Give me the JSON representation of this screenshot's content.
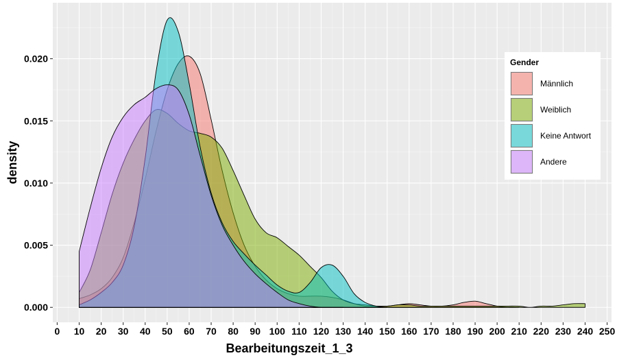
{
  "chart_data": {
    "type": "area",
    "subtype": "density",
    "xlabel": "Bearbeitungszeit_1_3",
    "ylabel": "density",
    "xlim": [
      -2,
      252
    ],
    "ylim": [
      -0.0012,
      0.0245
    ],
    "xticks": [
      0,
      10,
      20,
      30,
      40,
      50,
      60,
      70,
      80,
      90,
      100,
      110,
      120,
      130,
      140,
      150,
      160,
      170,
      180,
      190,
      200,
      210,
      220,
      230,
      240,
      250
    ],
    "yticks": [
      0.0,
      0.005,
      0.01,
      0.015,
      0.02
    ],
    "ytick_labels": [
      "0.000",
      "0.005",
      "0.010",
      "0.015",
      "0.020"
    ],
    "grid": true,
    "legend": {
      "title": "Gender",
      "position": "right",
      "entries": [
        "Männlich",
        "Weiblich",
        "Keine Antwort",
        "Andere"
      ]
    },
    "series": [
      {
        "name": "Männlich",
        "color": "#F8766D",
        "x": [
          10,
          15,
          20,
          25,
          30,
          35,
          40,
          45,
          50,
          55,
          60,
          65,
          70,
          75,
          80,
          85,
          90,
          95,
          100,
          105,
          110,
          115,
          120,
          125,
          130,
          135,
          140,
          145,
          150,
          155,
          160,
          165,
          170,
          175,
          180,
          185,
          190,
          195,
          200,
          205,
          210
        ],
        "y": [
          0.0007,
          0.001,
          0.0015,
          0.0024,
          0.004,
          0.0068,
          0.0103,
          0.0142,
          0.0175,
          0.0196,
          0.0202,
          0.0188,
          0.0151,
          0.011,
          0.0076,
          0.005,
          0.0033,
          0.0022,
          0.0015,
          0.0011,
          0.0009,
          0.0009,
          0.0009,
          0.0008,
          0.0006,
          0.0003,
          0.0001,
          0.0001,
          0.0001,
          0.0002,
          0.0003,
          0.0002,
          0.0001,
          0.0001,
          0.0002,
          0.0004,
          0.0005,
          0.0003,
          0.0001,
          0.0,
          0.0
        ]
      },
      {
        "name": "Weiblich",
        "color": "#7CAE00",
        "x": [
          10,
          15,
          20,
          25,
          30,
          35,
          40,
          45,
          50,
          55,
          60,
          65,
          70,
          75,
          80,
          85,
          90,
          95,
          100,
          105,
          110,
          115,
          120,
          125,
          130,
          135,
          140,
          145,
          150,
          155,
          160,
          165,
          170,
          175,
          180,
          185,
          190,
          195,
          200,
          205,
          210,
          215,
          220,
          225,
          230,
          235,
          240
        ],
        "y": [
          0.0012,
          0.003,
          0.006,
          0.0091,
          0.0116,
          0.0135,
          0.015,
          0.0159,
          0.0156,
          0.0148,
          0.0142,
          0.014,
          0.0137,
          0.0128,
          0.011,
          0.009,
          0.0071,
          0.006,
          0.0056,
          0.0049,
          0.0042,
          0.0033,
          0.0024,
          0.0013,
          0.0006,
          0.0003,
          0.0002,
          0.0001,
          0.0001,
          0.0002,
          0.0002,
          0.0001,
          0.0001,
          0.0001,
          0.0001,
          0.0001,
          0.0001,
          0.0001,
          0.0001,
          0.0001,
          0.0001,
          0.0,
          0.0001,
          0.0001,
          0.0002,
          0.0003,
          0.0003
        ]
      },
      {
        "name": "Keine Antwort",
        "color": "#00BFC4",
        "x": [
          10,
          15,
          20,
          25,
          30,
          35,
          40,
          45,
          50,
          55,
          60,
          65,
          70,
          75,
          80,
          85,
          90,
          95,
          100,
          105,
          110,
          115,
          120,
          125,
          130,
          135,
          140,
          145,
          150
        ],
        "y": [
          0.0002,
          0.0006,
          0.0012,
          0.002,
          0.0034,
          0.0065,
          0.012,
          0.019,
          0.0231,
          0.0222,
          0.018,
          0.0129,
          0.0092,
          0.0068,
          0.0053,
          0.0043,
          0.0034,
          0.0026,
          0.0018,
          0.0013,
          0.0012,
          0.002,
          0.0032,
          0.0034,
          0.0025,
          0.0011,
          0.0004,
          0.0001,
          0.0
        ]
      },
      {
        "name": "Andere",
        "color": "#C77CFF",
        "x": [
          10,
          15,
          20,
          25,
          30,
          35,
          40,
          45,
          50,
          55,
          60,
          65,
          70,
          75,
          80,
          85,
          90,
          95,
          100,
          105,
          110,
          115,
          120,
          125,
          130
        ],
        "y": [
          0.0045,
          0.008,
          0.0112,
          0.0137,
          0.0153,
          0.0163,
          0.0169,
          0.0176,
          0.0179,
          0.0175,
          0.0155,
          0.0122,
          0.009,
          0.0066,
          0.005,
          0.0037,
          0.0027,
          0.0019,
          0.0012,
          0.0006,
          0.0003,
          0.0001,
          0.0,
          0.0,
          0.0
        ]
      }
    ]
  }
}
